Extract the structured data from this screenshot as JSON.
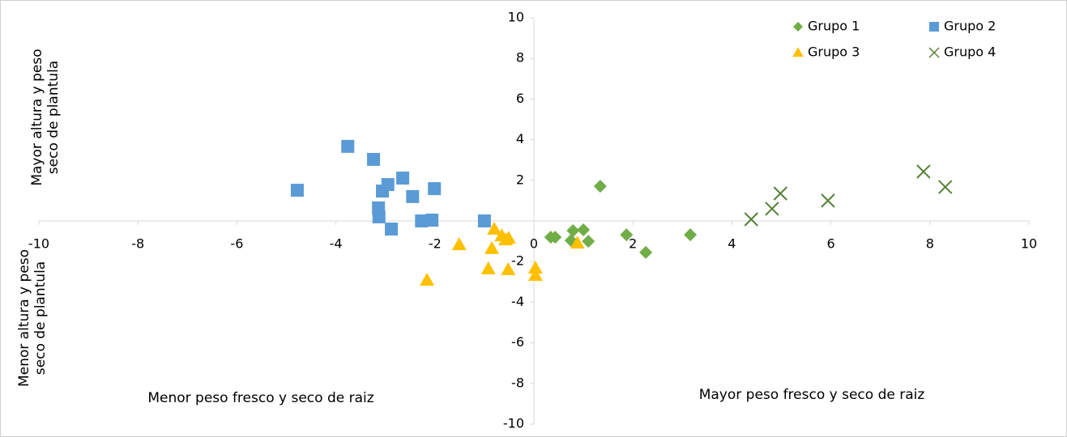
{
  "chart_data": {
    "type": "scatter",
    "xlim": [
      -10,
      10
    ],
    "ylim": [
      -10,
      10
    ],
    "xticks": [
      -10,
      -8,
      -6,
      -4,
      -2,
      0,
      2,
      4,
      6,
      8,
      10
    ],
    "yticks": [
      -10,
      -8,
      -6,
      -4,
      -2,
      2,
      4,
      6,
      8,
      10
    ],
    "legend": "top-right",
    "annotations": [
      {
        "lines": [
          "Mayor altura y peso",
          "seco de plantula"
        ],
        "position": "left-top"
      },
      {
        "lines": [
          "Menor altura y peso",
          "seco de plantula"
        ],
        "position": "left-bottom"
      },
      {
        "lines": [
          "Menor peso fresco y seco de raiz"
        ],
        "position": "bottom-left"
      },
      {
        "lines": [
          "Mayor peso fresco y seco de raiz"
        ],
        "position": "bottom-right"
      }
    ],
    "series": [
      {
        "name": "Grupo 1",
        "color": "#70ad47",
        "marker": "diamond",
        "x": [
          0.34,
          0.43,
          0.79,
          0.75,
          1.0,
          1.1,
          1.34,
          1.87,
          2.26,
          3.16
        ],
        "values": [
          -0.8,
          -0.8,
          -0.48,
          -0.96,
          -0.44,
          -1.0,
          1.71,
          -0.68,
          -1.55,
          -0.68
        ]
      },
      {
        "name": "Grupo 2",
        "color": "#5b9bd5",
        "marker": "square",
        "x": [
          -4.78,
          -3.76,
          -3.24,
          -3.06,
          -2.95,
          -2.65,
          -3.14,
          -3.13,
          -2.88,
          -2.45,
          -2.01,
          -2.27,
          -2.06,
          -1.0
        ],
        "values": [
          1.51,
          3.67,
          3.03,
          1.47,
          1.79,
          2.11,
          0.64,
          0.2,
          -0.4,
          1.2,
          1.59,
          0,
          0.04,
          0
        ]
      },
      {
        "name": "Grupo 3",
        "color": "#ffc000",
        "marker": "triangle",
        "x": [
          -2.16,
          -1.51,
          -0.92,
          -0.8,
          -0.85,
          -0.65,
          -0.57,
          -0.51,
          -0.52,
          0.03,
          0.03,
          0.88
        ],
        "values": [
          -2.91,
          -1.16,
          -2.35,
          -0.4,
          -1.35,
          -0.72,
          -0.92,
          -0.84,
          -2.39,
          -2.31,
          -2.67,
          -1.08
        ]
      },
      {
        "name": "Grupo 4",
        "color": "#548235",
        "marker": "cross",
        "x": [
          4.39,
          4.81,
          4.98,
          5.94,
          7.87,
          8.31
        ],
        "values": [
          0.08,
          0.6,
          1.35,
          1.0,
          2.43,
          1.67
        ]
      }
    ]
  }
}
